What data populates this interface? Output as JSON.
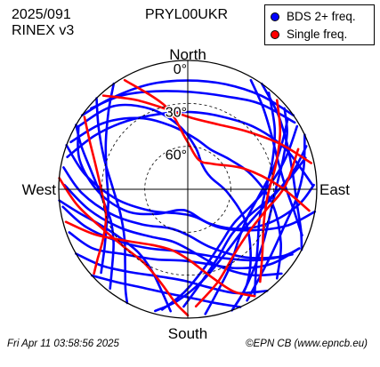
{
  "header": {
    "date_code": "2025/091",
    "rinex": "RINEX v3",
    "station": "PRYL00UKR"
  },
  "footer": {
    "timestamp": "Fri Apr 11 03:58:56 2025",
    "credit": "©EPN CB (www.epncb.eu)"
  },
  "legend": [
    {
      "label": "BDS 2+ freq.",
      "color": "#0000ff"
    },
    {
      "label": "Single freq.",
      "color": "#ff0000"
    }
  ],
  "chart_data": {
    "type": "polar-skyplot",
    "directions": {
      "north": "North",
      "south": "South",
      "east": "East",
      "west": "West"
    },
    "elevation_rings": [
      {
        "value": 0,
        "label": "0°"
      },
      {
        "value": 30,
        "label": "30°"
      },
      {
        "value": 60,
        "label": "60°"
      }
    ],
    "grid": true,
    "series": [
      {
        "name": "BDS 2+ freq.",
        "color": "#0000ff",
        "tracks": [
          [
            [
              300,
              2
            ],
            [
              318,
              12
            ],
            [
              335,
              28
            ],
            [
              352,
              45
            ],
            [
              10,
              60
            ],
            [
              30,
              70
            ],
            [
              62,
              72
            ],
            [
              95,
              62
            ],
            [
              118,
              45
            ],
            [
              135,
              28
            ],
            [
              148,
              12
            ],
            [
              158,
              2
            ]
          ],
          [
            [
              292,
              2
            ],
            [
              308,
              15
            ],
            [
              326,
              30
            ],
            [
              345,
              44
            ],
            [
              8,
              54
            ],
            [
              30,
              58
            ],
            [
              55,
              54
            ],
            [
              78,
              44
            ],
            [
              100,
              30
            ],
            [
              120,
              15
            ],
            [
              135,
              2
            ]
          ],
          [
            [
              285,
              3
            ],
            [
              300,
              15
            ],
            [
              318,
              26
            ],
            [
              340,
              34
            ],
            [
              2,
              36
            ],
            [
              25,
              34
            ],
            [
              48,
              26
            ],
            [
              68,
              16
            ],
            [
              88,
              3
            ]
          ],
          [
            [
              310,
              2
            ],
            [
              325,
              10
            ],
            [
              342,
              18
            ],
            [
              2,
              22
            ],
            [
              22,
              20
            ],
            [
              40,
              12
            ],
            [
              58,
              2
            ]
          ],
          [
            [
              305,
              0
            ],
            [
              320,
              7
            ],
            [
              340,
              12
            ],
            [
              0,
              14
            ],
            [
              20,
              12
            ],
            [
              38,
              7
            ],
            [
              55,
              0
            ]
          ],
          [
            [
              300,
              2
            ],
            [
              285,
              12
            ],
            [
              268,
              28
            ],
            [
              250,
              45
            ],
            [
              232,
              62
            ],
            [
              205,
              74
            ],
            [
              175,
              74
            ],
            [
              148,
              62
            ],
            [
              128,
              45
            ],
            [
              112,
              28
            ],
            [
              98,
              12
            ],
            [
              88,
              2
            ]
          ],
          [
            [
              250,
              2
            ],
            [
              238,
              12
            ],
            [
              225,
              26
            ],
            [
              205,
              36
            ],
            [
              185,
              40
            ],
            [
              165,
              36
            ],
            [
              148,
              25
            ],
            [
              132,
              12
            ],
            [
              118,
              2
            ]
          ],
          [
            [
              262,
              2
            ],
            [
              250,
              14
            ],
            [
              235,
              28
            ],
            [
              215,
              40
            ],
            [
              192,
              46
            ],
            [
              170,
              44
            ],
            [
              150,
              34
            ],
            [
              135,
              20
            ],
            [
              122,
              4
            ]
          ],
          [
            [
              280,
              2
            ],
            [
              268,
              16
            ],
            [
              252,
              34
            ],
            [
              232,
              50
            ],
            [
              205,
              60
            ],
            [
              180,
              58
            ],
            [
              158,
              46
            ],
            [
              140,
              28
            ],
            [
              126,
              10
            ],
            [
              118,
              2
            ]
          ],
          [
            [
              272,
              4
            ],
            [
              258,
              20
            ],
            [
              240,
              36
            ],
            [
              218,
              48
            ],
            [
              196,
              52
            ],
            [
              175,
              46
            ],
            [
              158,
              32
            ],
            [
              144,
              16
            ],
            [
              132,
              2
            ]
          ],
          [
            [
              240,
              0
            ],
            [
              228,
              10
            ],
            [
              214,
              20
            ],
            [
              198,
              26
            ],
            [
              182,
              26
            ],
            [
              168,
              20
            ],
            [
              155,
              10
            ],
            [
              142,
              0
            ]
          ],
          [
            [
              228,
              0
            ],
            [
              218,
              8
            ],
            [
              206,
              14
            ],
            [
              192,
              16
            ],
            [
              178,
              14
            ],
            [
              166,
              8
            ],
            [
              156,
              0
            ]
          ],
          [
            [
              290,
              0
            ],
            [
              278,
              18
            ],
            [
              262,
              40
            ],
            [
              240,
              60
            ],
            [
              200,
              72
            ],
            [
              165,
              70
            ],
            [
              140,
              55
            ],
            [
              122,
              36
            ],
            [
              110,
              16
            ],
            [
              100,
              0
            ]
          ],
          [
            [
              70,
              2
            ],
            [
              80,
              15
            ],
            [
              92,
              28
            ],
            [
              108,
              38
            ],
            [
              128,
              42
            ],
            [
              150,
              38
            ],
            [
              170,
              26
            ],
            [
              185,
              12
            ],
            [
              195,
              2
            ]
          ],
          [
            [
              60,
              2
            ],
            [
              72,
              18
            ],
            [
              86,
              32
            ],
            [
              104,
              44
            ],
            [
              126,
              50
            ],
            [
              148,
              46
            ],
            [
              168,
              34
            ],
            [
              182,
              18
            ],
            [
              192,
              4
            ]
          ],
          [
            [
              75,
              5
            ],
            [
              85,
              20
            ],
            [
              98,
              34
            ],
            [
              115,
              44
            ],
            [
              136,
              46
            ],
            [
              156,
              38
            ],
            [
              172,
              24
            ],
            [
              182,
              8
            ]
          ],
          [
            [
              55,
              5
            ],
            [
              65,
              18
            ],
            [
              78,
              30
            ],
            [
              95,
              40
            ],
            [
              115,
              44
            ],
            [
              135,
              40
            ],
            [
              152,
              28
            ],
            [
              165,
              14
            ],
            [
              172,
              2
            ]
          ],
          [
            [
              50,
              2
            ],
            [
              60,
              10
            ],
            [
              72,
              20
            ],
            [
              88,
              28
            ],
            [
              106,
              30
            ],
            [
              124,
              26
            ],
            [
              140,
              18
            ],
            [
              152,
              8
            ],
            [
              160,
              0
            ]
          ],
          [
            [
              40,
              2
            ],
            [
              55,
              16
            ],
            [
              72,
              28
            ],
            [
              92,
              36
            ],
            [
              112,
              36
            ],
            [
              128,
              28
            ],
            [
              140,
              16
            ],
            [
              148,
              2
            ]
          ],
          [
            [
              30,
              2
            ],
            [
              42,
              12
            ],
            [
              56,
              20
            ],
            [
              72,
              24
            ],
            [
              88,
              22
            ],
            [
              102,
              14
            ],
            [
              112,
              4
            ]
          ],
          [
            [
              35,
              0
            ],
            [
              50,
              8
            ],
            [
              66,
              14
            ],
            [
              82,
              16
            ],
            [
              98,
              13
            ],
            [
              110,
              6
            ],
            [
              118,
              0
            ]
          ],
          [
            [
              65,
              0
            ],
            [
              80,
              8
            ],
            [
              95,
              14
            ],
            [
              112,
              18
            ],
            [
              128,
              16
            ],
            [
              142,
              10
            ],
            [
              152,
              2
            ]
          ],
          [
            [
              315,
              0
            ],
            [
              305,
              14
            ],
            [
              290,
              28
            ],
            [
              270,
              38
            ],
            [
              250,
              40
            ],
            [
              232,
              34
            ],
            [
              220,
              22
            ],
            [
              212,
              8
            ],
            [
              208,
              0
            ]
          ],
          [
            [
              325,
              0
            ],
            [
              315,
              12
            ],
            [
              300,
              24
            ],
            [
              282,
              32
            ],
            [
              262,
              34
            ],
            [
              246,
              28
            ],
            [
              234,
              18
            ],
            [
              226,
              6
            ]
          ],
          [
            [
              300,
              0
            ],
            [
              292,
              10
            ],
            [
              280,
              22
            ],
            [
              264,
              30
            ],
            [
              248,
              32
            ],
            [
              234,
              26
            ],
            [
              224,
              14
            ],
            [
              218,
              2
            ]
          ],
          [
            [
              265,
              0
            ],
            [
              258,
              12
            ],
            [
              248,
              24
            ],
            [
              234,
              32
            ],
            [
              218,
              34
            ],
            [
              204,
              28
            ],
            [
              194,
              16
            ],
            [
              188,
              4
            ]
          ]
        ]
      },
      {
        "name": "Single freq.",
        "color": "#ff0000",
        "tracks": [
          [
            [
              330,
              2
            ],
            [
              345,
              30
            ],
            [
              358,
              55
            ],
            [
              20,
              68
            ],
            [
              45,
              65
            ],
            [
              70,
              48
            ],
            [
              88,
              26
            ],
            [
              100,
              4
            ]
          ],
          [
            [
              318,
              2
            ],
            [
              330,
              18
            ],
            [
              345,
              32
            ],
            [
              3,
              40
            ],
            [
              25,
              40
            ],
            [
              46,
              32
            ],
            [
              64,
              18
            ],
            [
              78,
              2
            ]
          ],
          [
            [
              70,
              8
            ],
            [
              88,
              22
            ],
            [
              106,
              34
            ],
            [
              125,
              38
            ],
            [
              145,
              34
            ],
            [
              162,
              22
            ],
            [
              176,
              8
            ]
          ],
          [
            [
              45,
              2
            ],
            [
              58,
              14
            ],
            [
              74,
              26
            ],
            [
              94,
              34
            ],
            [
              114,
              32
            ],
            [
              130,
              22
            ],
            [
              142,
              8
            ]
          ],
          [
            [
              255,
              2
            ],
            [
              244,
              18
            ],
            [
              230,
              34
            ],
            [
              212,
              44
            ],
            [
              194,
              46
            ],
            [
              178,
              40
            ],
            [
              166,
              28
            ],
            [
              156,
              12
            ],
            [
              148,
              2
            ]
          ],
          [
            [
              275,
              0
            ],
            [
              262,
              12
            ],
            [
              246,
              24
            ],
            [
              228,
              30
            ],
            [
              210,
              30
            ],
            [
              196,
              22
            ],
            [
              186,
              10
            ],
            [
              180,
              2
            ]
          ],
          [
            [
              305,
              2
            ],
            [
              296,
              14
            ],
            [
              284,
              24
            ],
            [
              268,
              30
            ],
            [
              252,
              30
            ],
            [
              240,
              22
            ],
            [
              232,
              10
            ],
            [
              228,
              2
            ]
          ]
        ]
      }
    ]
  }
}
